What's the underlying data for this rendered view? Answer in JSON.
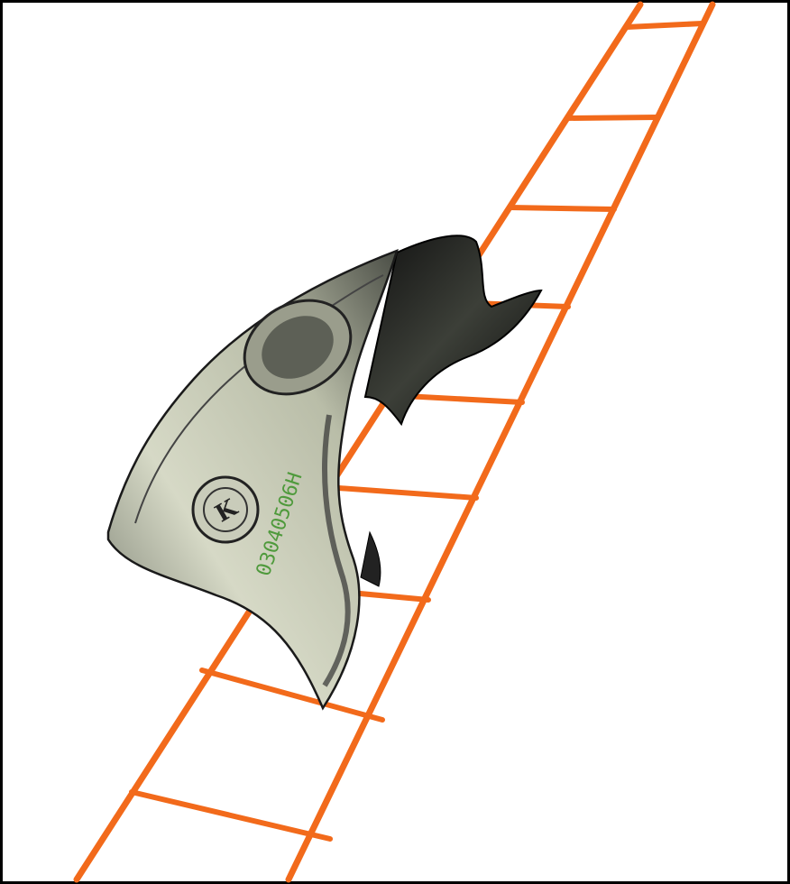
{
  "image": {
    "serial_number": "03040506H",
    "seal_letter": "K"
  }
}
